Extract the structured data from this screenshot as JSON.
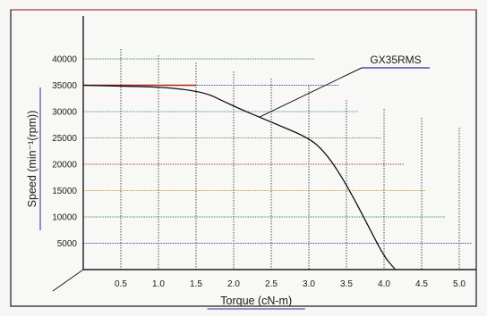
{
  "chart_data": {
    "type": "line",
    "title": "",
    "xlabel": "Torque (cN-m)",
    "ylabel": "Speed (min⁻¹(rpm))",
    "xlim": [
      0,
      5.0
    ],
    "ylim": [
      0,
      40000
    ],
    "x_ticks": [
      "0.5",
      "1.0",
      "1.5",
      "2.0",
      "2.5",
      "3.0",
      "3.5",
      "4.0",
      "4.5",
      "5.0"
    ],
    "y_ticks": [
      "5000",
      "10000",
      "15000",
      "20000",
      "25000",
      "30000",
      "35000",
      "40000"
    ],
    "grid": true,
    "series": [
      {
        "name": "GX35RMS",
        "x": [
          0,
          1.5,
          2.0,
          2.5,
          3.0,
          3.2,
          3.4,
          3.6,
          3.8,
          4.0,
          4.15
        ],
        "y": [
          35000,
          34500,
          31000,
          28000,
          25000,
          22500,
          18500,
          13500,
          8000,
          2500,
          0
        ]
      }
    ],
    "colors": {
      "curve": "#111111",
      "frame": "#1a1a1a",
      "grid_palette": [
        "#3a3aa8",
        "#2a8a3a",
        "#c89a1a",
        "#b03030",
        "#777777",
        "#3a8a9a"
      ]
    }
  }
}
